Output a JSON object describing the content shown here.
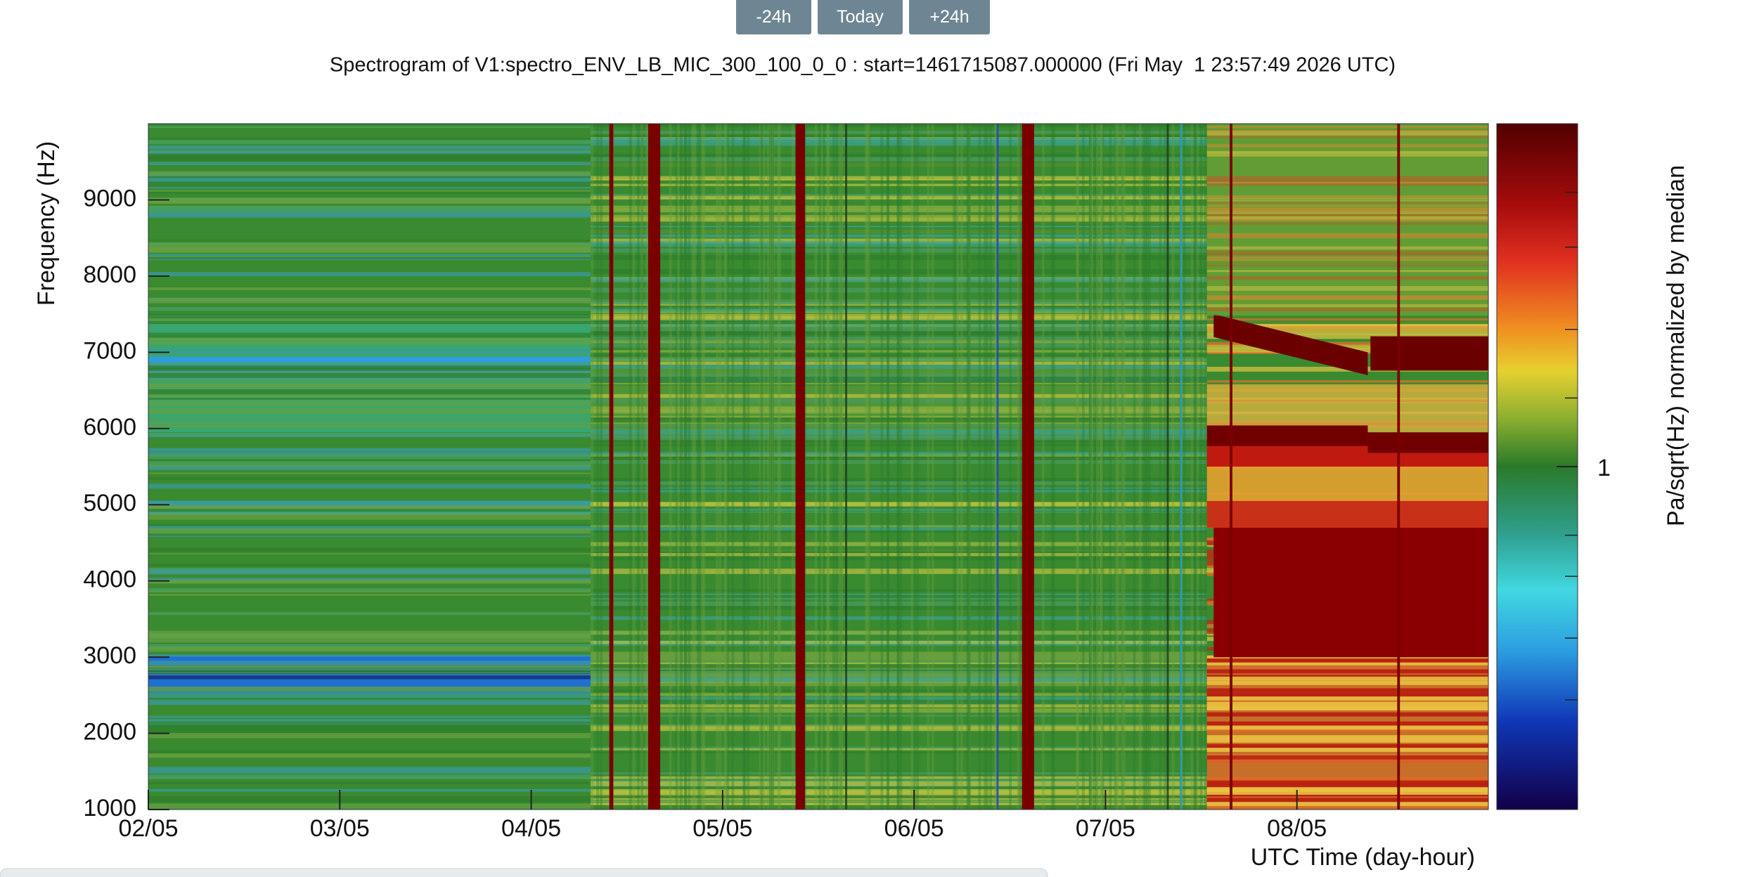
{
  "toolbar": {
    "buttons": [
      "-24h",
      "Today",
      "+24h"
    ]
  },
  "chart_data": {
    "type": "spectrogram",
    "title": "Spectrogram of V1:spectro_ENV_LB_MIC_300_100_0_0 : start=1461715087.000000 (Fri May  1 23:57:49 2026 UTC)",
    "ylabel": "Frequency (Hz)",
    "xlabel": "UTC Time (day-hour)",
    "colorbar_label": "Pa/sqrt(Hz) normalized by median",
    "colorbar_ticks": [
      1
    ],
    "xlim": [
      2,
      9
    ],
    "xticks": [
      {
        "value": 2,
        "label": "02/05"
      },
      {
        "value": 3,
        "label": "03/05"
      },
      {
        "value": 4,
        "label": "04/05"
      },
      {
        "value": 5,
        "label": "05/05"
      },
      {
        "value": 6,
        "label": "06/05"
      },
      {
        "value": 7,
        "label": "07/05"
      },
      {
        "value": 8,
        "label": "08/05"
      }
    ],
    "ylim": [
      1000,
      10000
    ],
    "yticks": [
      1000,
      2000,
      3000,
      4000,
      5000,
      6000,
      7000,
      8000,
      9000
    ]
  }
}
